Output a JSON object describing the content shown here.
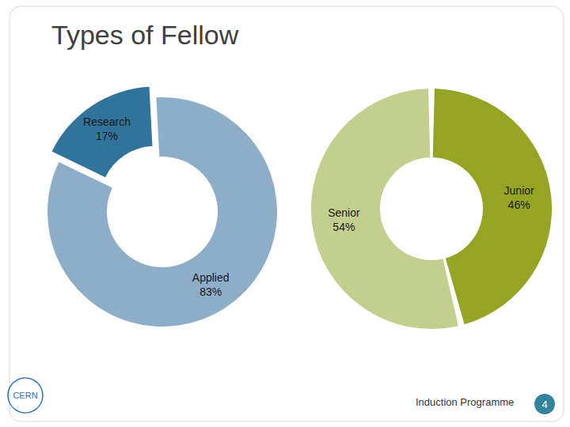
{
  "title": "Types of Fellow",
  "chart_data": [
    {
      "type": "pie",
      "categories": [
        "Applied",
        "Research"
      ],
      "values": [
        83,
        17
      ],
      "value_labels": [
        "83%",
        "17%"
      ],
      "colors": [
        "#8eadc8",
        "#31749b"
      ],
      "data_labels": true
    },
    {
      "type": "pie",
      "categories": [
        "Junior",
        "Senior"
      ],
      "values": [
        46,
        54
      ],
      "value_labels": [
        "46%",
        "54%"
      ],
      "colors": [
        "#95a424",
        "#c3cf8f"
      ],
      "data_labels": true
    }
  ],
  "footer": "Induction Programme",
  "page": 4,
  "logo": "CERN"
}
